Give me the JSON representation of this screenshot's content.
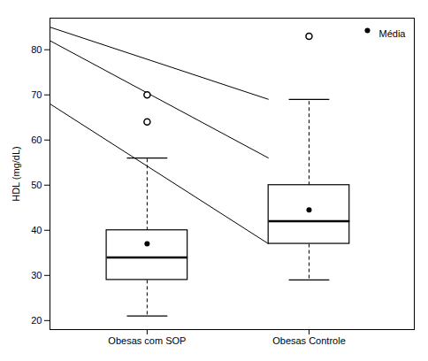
{
  "chart_data": {
    "type": "box",
    "categories": [
      "Obesas com SOP",
      "Obesas Controle"
    ],
    "x": [
      1,
      2
    ],
    "xlim": [
      0.4,
      2.65
    ],
    "ylabel": "HDL (mg/dL)",
    "ylim": [
      18,
      87
    ],
    "yticks": [
      20,
      30,
      40,
      50,
      60,
      70,
      80
    ],
    "boxes": [
      {
        "q1": 29,
        "median": 34,
        "q3": 40,
        "whisker_low": 21,
        "whisker_high": 56,
        "mean": 37,
        "outliers": [
          64,
          70
        ]
      },
      {
        "q1": 37,
        "median": 42,
        "q3": 50,
        "whisker_low": 29,
        "whisker_high": 69,
        "mean": 44.5,
        "outliers": [
          83
        ]
      }
    ],
    "lines": [
      {
        "x1": 0.4,
        "y1": 85,
        "x2": 1.75,
        "y2": 69
      },
      {
        "x1": 0.4,
        "y1": 82,
        "x2": 1.75,
        "y2": 56
      },
      {
        "x1": 0.4,
        "y1": 68,
        "x2": 1.75,
        "y2": 37
      }
    ],
    "mean_label": "Média",
    "legend": "upper right"
  }
}
